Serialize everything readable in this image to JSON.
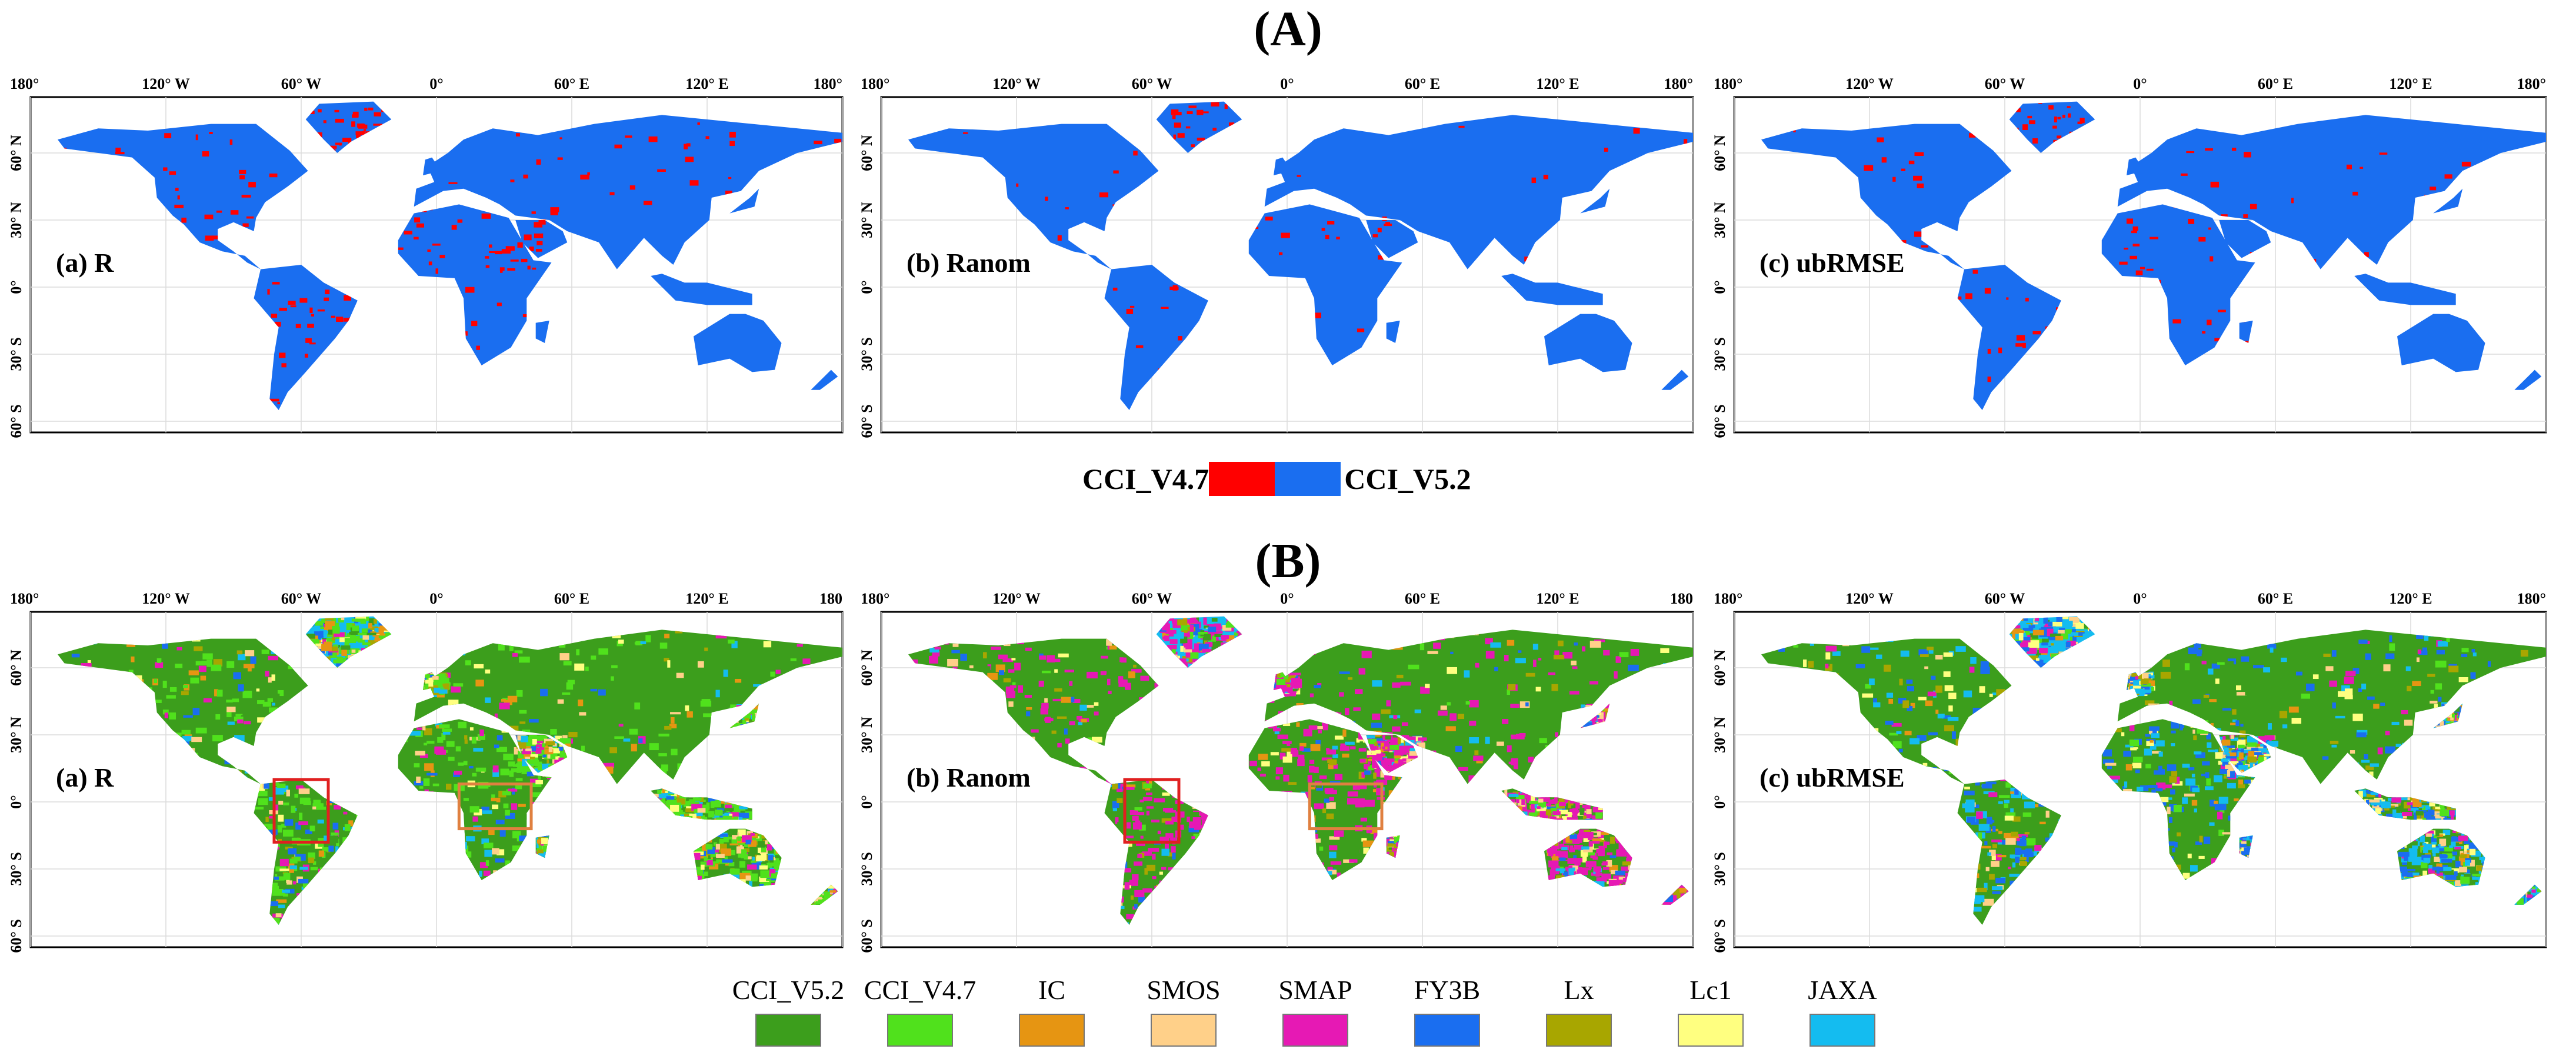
{
  "figure": {
    "section_a_title": "(A)",
    "section_b_title": "(B)",
    "lon_ticks": [
      "180°",
      "120° W",
      "60° W",
      "0°",
      "60° E",
      "120° E",
      "180°"
    ],
    "lat_ticks": [
      "60° N",
      "30° N",
      "0°",
      "30° S",
      "60° S"
    ]
  },
  "section_a": {
    "panels": [
      {
        "label": "(a) R",
        "patch_density": 0.28
      },
      {
        "label": "(b) Ranom",
        "patch_density": 0.1
      },
      {
        "label": "(c) ubRMSE",
        "patch_density": 0.16
      }
    ],
    "legend": {
      "left_label": "CCI_V4.7",
      "right_label": "CCI_V5.2",
      "left_color": "#ff0000",
      "right_color": "#1a6ef0"
    }
  },
  "section_b": {
    "panels": [
      {
        "label": "(a) R",
        "top_ticks": [
          "180°",
          "120° W",
          "60° W",
          "0°",
          "60° E",
          "120° E",
          "180"
        ],
        "highlight_boxes": [
          {
            "region": "South America",
            "color": "#e02020"
          },
          {
            "region": "Central Africa",
            "color": "#e08040"
          }
        ]
      },
      {
        "label": "(b) Ranom",
        "top_ticks": [
          "180°",
          "120° W",
          "60° W",
          "0°",
          "60° E",
          "120° E",
          "180"
        ],
        "highlight_boxes": [
          {
            "region": "South America",
            "color": "#e02020"
          },
          {
            "region": "Central Africa",
            "color": "#e08040"
          }
        ]
      },
      {
        "label": "(c) ubRMSE",
        "top_ticks": [
          "180°",
          "120° W",
          "60° W",
          "0°",
          "60° E",
          "120° E",
          "180°"
        ],
        "highlight_boxes": []
      }
    ],
    "legend": [
      {
        "name": "CCI_V5.2",
        "color": "#3c9e1c"
      },
      {
        "name": "CCI_V4.7",
        "color": "#50e11c"
      },
      {
        "name": "IC",
        "color": "#e69512"
      },
      {
        "name": "SMOS",
        "color": "#ffd089"
      },
      {
        "name": "SMAP",
        "color": "#e619b4"
      },
      {
        "name": "FY3B",
        "color": "#1a6ef0"
      },
      {
        "name": "Lx",
        "color": "#a8a600"
      },
      {
        "name": "Lc1",
        "color": "#ffff80"
      },
      {
        "name": "JAXA",
        "color": "#14bcf0"
      }
    ]
  }
}
